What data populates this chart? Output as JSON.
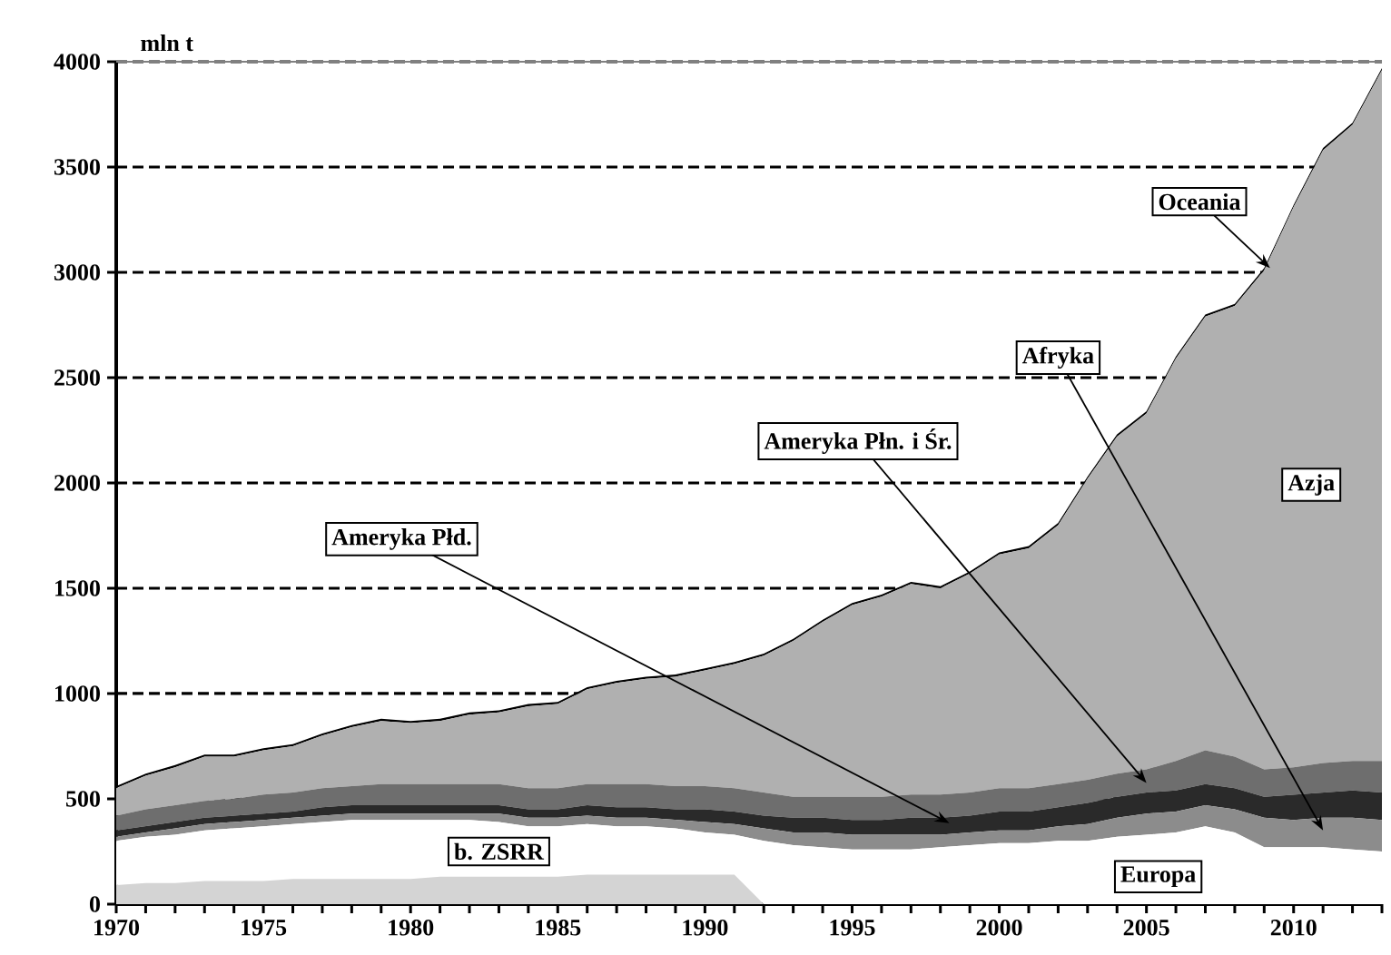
{
  "chart_data": {
    "type": "area",
    "stacked": true,
    "ylabel": "mln t",
    "x": [
      1970,
      1971,
      1972,
      1973,
      1974,
      1975,
      1976,
      1977,
      1978,
      1979,
      1980,
      1981,
      1982,
      1983,
      1984,
      1985,
      1986,
      1987,
      1988,
      1989,
      1990,
      1991,
      1992,
      1993,
      1994,
      1995,
      1996,
      1997,
      1998,
      1999,
      2000,
      2001,
      2002,
      2003,
      2004,
      2005,
      2006,
      2007,
      2008,
      2009,
      2010,
      2011,
      2012,
      2013
    ],
    "series": [
      {
        "name": "b. ZSRR",
        "color": "#d4d4d4",
        "values": [
          90,
          100,
          100,
          110,
          110,
          110,
          120,
          120,
          120,
          120,
          120,
          130,
          130,
          130,
          130,
          130,
          140,
          140,
          140,
          140,
          140,
          140,
          0,
          0,
          0,
          0,
          0,
          0,
          0,
          0,
          0,
          0,
          0,
          0,
          0,
          0,
          0,
          0,
          0,
          0,
          0,
          0,
          0,
          0
        ]
      },
      {
        "name": "Europa",
        "color": "#ffffff",
        "values": [
          210,
          220,
          230,
          240,
          250,
          260,
          260,
          270,
          280,
          280,
          280,
          270,
          270,
          260,
          240,
          240,
          240,
          230,
          230,
          220,
          200,
          190,
          300,
          280,
          270,
          260,
          260,
          260,
          270,
          280,
          290,
          290,
          300,
          300,
          320,
          330,
          340,
          370,
          340,
          270,
          270,
          270,
          260,
          250
        ]
      },
      {
        "name": "Afryka",
        "color": "#8c8c8c",
        "values": [
          20,
          20,
          30,
          30,
          30,
          30,
          30,
          30,
          30,
          30,
          30,
          30,
          30,
          40,
          40,
          40,
          40,
          40,
          40,
          40,
          50,
          50,
          60,
          60,
          70,
          70,
          70,
          70,
          60,
          60,
          60,
          60,
          70,
          80,
          90,
          100,
          100,
          100,
          110,
          140,
          130,
          140,
          150,
          150
        ]
      },
      {
        "name": "Ameryka Płd.",
        "color": "#2a2a2a",
        "values": [
          30,
          30,
          30,
          30,
          30,
          30,
          30,
          40,
          40,
          40,
          40,
          40,
          40,
          40,
          40,
          40,
          50,
          50,
          50,
          50,
          60,
          60,
          60,
          70,
          70,
          70,
          70,
          80,
          80,
          80,
          90,
          90,
          90,
          100,
          100,
          100,
          100,
          100,
          100,
          100,
          120,
          120,
          130,
          130
        ]
      },
      {
        "name": "Ameryka Płn. i Śr.",
        "color": "#6e6e6e",
        "values": [
          70,
          80,
          80,
          80,
          80,
          90,
          90,
          90,
          90,
          100,
          100,
          100,
          100,
          100,
          100,
          100,
          100,
          110,
          110,
          110,
          110,
          110,
          110,
          100,
          100,
          110,
          110,
          110,
          110,
          110,
          110,
          110,
          110,
          110,
          110,
          110,
          140,
          160,
          150,
          130,
          130,
          140,
          140,
          150
        ]
      },
      {
        "name": "Azja",
        "color": "#b0b0b0",
        "values": [
          130,
          160,
          180,
          210,
          200,
          210,
          220,
          250,
          280,
          300,
          290,
          300,
          330,
          340,
          390,
          400,
          450,
          480,
          500,
          520,
          550,
          590,
          650,
          740,
          830,
          910,
          950,
          1000,
          980,
          1040,
          1110,
          1140,
          1230,
          1430,
          1600,
          1690,
          1910,
          2060,
          2140,
          2370,
          2660,
          2910,
          3020,
          3280
        ]
      },
      {
        "name": "Oceania",
        "color": "#000000",
        "values": [
          10,
          10,
          10,
          10,
          10,
          10,
          10,
          10,
          10,
          10,
          10,
          10,
          10,
          10,
          10,
          10,
          10,
          10,
          10,
          10,
          10,
          10,
          10,
          10,
          10,
          10,
          10,
          10,
          10,
          10,
          10,
          10,
          10,
          10,
          10,
          10,
          10,
          10,
          10,
          10,
          10,
          10,
          10,
          10
        ]
      }
    ],
    "xlim": [
      1970,
      2013
    ],
    "ylim": [
      0,
      4000
    ],
    "xticks": [
      1970,
      {
        "value": 1971,
        "label": null
      },
      {
        "value": 1972,
        "label": null
      },
      {
        "value": 1973,
        "label": null
      },
      {
        "value": 1974,
        "label": null
      },
      1975,
      {
        "value": 1976,
        "label": null
      },
      {
        "value": 1977,
        "label": null
      },
      {
        "value": 1978,
        "label": null
      },
      {
        "value": 1979,
        "label": null
      },
      1980,
      {
        "value": 1981,
        "label": null
      },
      {
        "value": 1982,
        "label": null
      },
      {
        "value": 1983,
        "label": null
      },
      {
        "value": 1984,
        "label": null
      },
      1985,
      {
        "value": 1986,
        "label": null
      },
      {
        "value": 1987,
        "label": null
      },
      {
        "value": 1988,
        "label": null
      },
      {
        "value": 1989,
        "label": null
      },
      1990,
      {
        "value": 1991,
        "label": null
      },
      {
        "value": 1992,
        "label": null
      },
      {
        "value": 1993,
        "label": null
      },
      {
        "value": 1994,
        "label": null
      },
      1995,
      {
        "value": 1996,
        "label": null
      },
      {
        "value": 1997,
        "label": null
      },
      {
        "value": 1998,
        "label": null
      },
      {
        "value": 1999,
        "label": null
      },
      2000,
      {
        "value": 2001,
        "label": null
      },
      {
        "value": 2002,
        "label": null
      },
      {
        "value": 2003,
        "label": null
      },
      {
        "value": 2004,
        "label": null
      },
      2005,
      {
        "value": 2006,
        "label": null
      },
      {
        "value": 2007,
        "label": null
      },
      {
        "value": 2008,
        "label": null
      },
      {
        "value": 2009,
        "label": null
      },
      2010,
      {
        "value": 2011,
        "label": null
      },
      {
        "value": 2012,
        "label": null
      },
      {
        "value": 2013,
        "label": null
      }
    ],
    "yticks": [
      0,
      500,
      1000,
      1500,
      2000,
      2500,
      3000,
      3500,
      4000
    ],
    "grid": "y"
  }
}
